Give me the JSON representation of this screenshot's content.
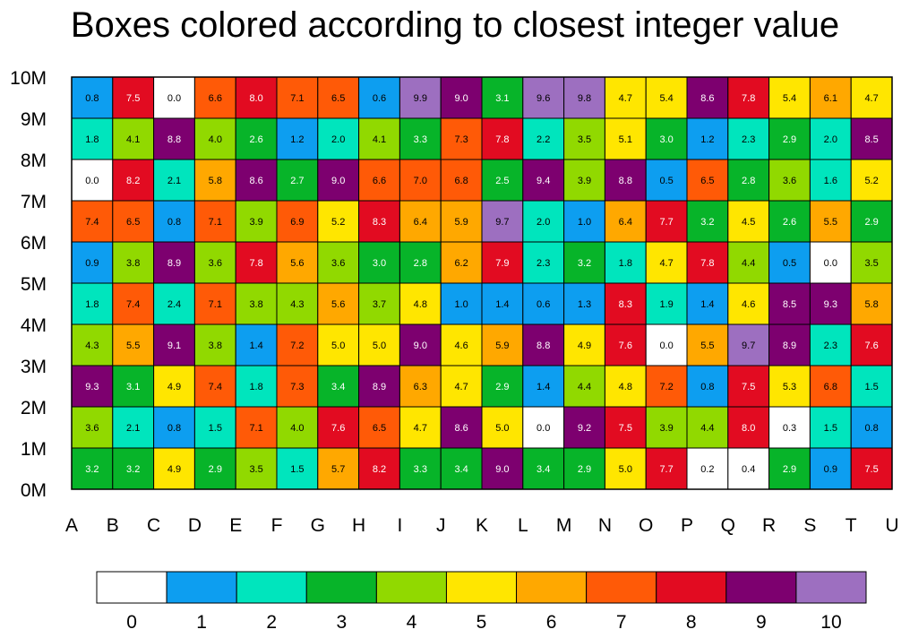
{
  "chart_data": {
    "type": "heatmap",
    "title": "Boxes colored according to closest integer value",
    "x_categories": [
      "A",
      "B",
      "C",
      "D",
      "E",
      "F",
      "G",
      "H",
      "I",
      "J",
      "K",
      "L",
      "M",
      "N",
      "O",
      "P",
      "Q",
      "R",
      "S",
      "T",
      "U"
    ],
    "y_tick_labels": [
      "0M",
      "1M",
      "2M",
      "3M",
      "4M",
      "5M",
      "6M",
      "7M",
      "8M",
      "9M",
      "10M"
    ],
    "ylim": [
      0,
      10
    ],
    "rows_top_to_bottom": [
      [
        0.8,
        7.5,
        0.0,
        6.6,
        8.0,
        7.1,
        6.5,
        0.6,
        9.9,
        9.0,
        3.1,
        9.6,
        9.8,
        4.7,
        5.4,
        8.6,
        7.8,
        5.4,
        6.1,
        4.7
      ],
      [
        1.8,
        4.1,
        8.8,
        4.0,
        2.6,
        1.2,
        2.0,
        4.1,
        3.3,
        7.3,
        7.8,
        2.2,
        3.5,
        5.1,
        3.0,
        1.2,
        2.3,
        2.9,
        2.0,
        8.5
      ],
      [
        0.0,
        8.2,
        2.1,
        5.8,
        8.6,
        2.7,
        9.0,
        6.6,
        7.0,
        6.8,
        2.5,
        9.4,
        3.9,
        8.8,
        0.5,
        6.5,
        2.8,
        3.6,
        1.6,
        5.2
      ],
      [
        7.4,
        6.5,
        0.8,
        7.1,
        3.9,
        6.9,
        5.2,
        8.3,
        6.4,
        5.9,
        9.7,
        2.0,
        1.0,
        6.4,
        7.7,
        3.2,
        4.5,
        2.6,
        5.5,
        2.9
      ],
      [
        0.9,
        3.8,
        8.9,
        3.6,
        7.8,
        5.6,
        3.6,
        3.0,
        2.8,
        6.2,
        7.9,
        2.3,
        3.2,
        1.8,
        4.7,
        7.8,
        4.4,
        0.5,
        0.0,
        3.5
      ],
      [
        1.8,
        7.4,
        2.4,
        7.1,
        3.8,
        4.3,
        5.6,
        3.7,
        4.8,
        1.0,
        1.4,
        0.6,
        1.3,
        8.3,
        1.9,
        1.4,
        4.6,
        8.5,
        9.3,
        5.8
      ],
      [
        4.3,
        5.5,
        9.1,
        3.8,
        1.4,
        7.2,
        5.0,
        5.0,
        9.0,
        4.6,
        5.9,
        8.8,
        4.9,
        7.6,
        0.0,
        5.5,
        9.7,
        8.9,
        2.3,
        7.6
      ],
      [
        9.3,
        3.1,
        4.9,
        7.4,
        1.8,
        7.3,
        3.4,
        8.9,
        6.3,
        4.7,
        2.9,
        1.4,
        4.4,
        4.8,
        7.2,
        0.8,
        7.5,
        5.3,
        6.8,
        1.5
      ],
      [
        3.6,
        2.1,
        0.8,
        1.5,
        7.1,
        4.0,
        7.6,
        6.5,
        4.7,
        8.6,
        5.0,
        0.0,
        9.2,
        7.5,
        3.9,
        4.4,
        8.0,
        0.3,
        1.5,
        0.8
      ],
      [
        3.2,
        3.2,
        4.9,
        2.9,
        3.5,
        1.5,
        5.7,
        8.2,
        3.3,
        3.4,
        9.0,
        3.4,
        2.9,
        5.0,
        7.7,
        0.2,
        0.4,
        2.9,
        0.9,
        7.5
      ]
    ],
    "colorbar": {
      "labels": [
        "0",
        "1",
        "2",
        "3",
        "4",
        "5",
        "6",
        "7",
        "8",
        "9",
        "10"
      ],
      "colors": [
        "#ffffff",
        "#0d9ef0",
        "#00e5bd",
        "#07b429",
        "#91d900",
        "#ffe600",
        "#ffa800",
        "#ff5a07",
        "#e20b21",
        "#7d006f",
        "#9d6fc0"
      ]
    },
    "grid": true
  }
}
